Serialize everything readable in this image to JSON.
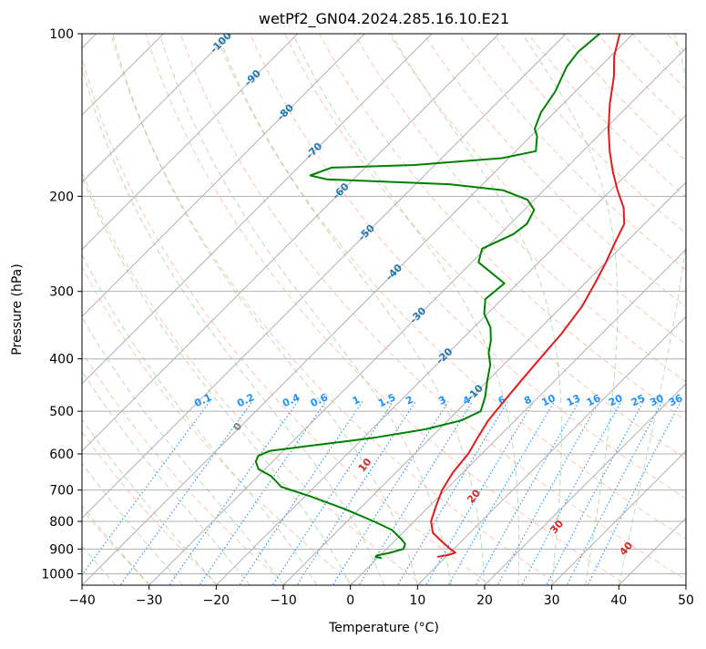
{
  "chart_data": {
    "type": "line",
    "subtype": "skew-t log-p diagram",
    "title": "wetPf2_GN04.2024.285.16.10.E21",
    "xlabel": "Temperature (°C)",
    "ylabel": "Pressure (hPa)",
    "xlim": [
      -40,
      50
    ],
    "ylim": [
      1050,
      100
    ],
    "y_scale": "log",
    "skew": "isotherms slope up-right at 45°",
    "x_ticks": [
      -40,
      -30,
      -20,
      -10,
      0,
      10,
      20,
      30,
      40,
      50
    ],
    "y_ticks": [
      1000,
      900,
      800,
      700,
      600,
      500,
      400,
      300,
      200,
      100
    ],
    "grid": true,
    "series": [
      {
        "label": "temperature",
        "color": "#e41a1c",
        "points": [
          [
            8.8,
            930
          ],
          [
            10.2,
            922
          ],
          [
            10.8,
            914
          ],
          [
            9.5,
            900
          ],
          [
            7.0,
            870
          ],
          [
            4.5,
            840
          ],
          [
            2.5,
            800
          ],
          [
            1.0,
            750
          ],
          [
            -0.5,
            700
          ],
          [
            -1.5,
            650
          ],
          [
            -2.0,
            600
          ],
          [
            -3.0,
            560
          ],
          [
            -4.0,
            520
          ],
          [
            -4.5,
            480
          ],
          [
            -5.0,
            440
          ],
          [
            -5.5,
            400
          ],
          [
            -6.0,
            360
          ],
          [
            -7.0,
            320
          ],
          [
            -8.5,
            290
          ],
          [
            -10.0,
            265
          ],
          [
            -11.5,
            245
          ],
          [
            -13.0,
            225
          ],
          [
            -15.5,
            210
          ],
          [
            -19.0,
            195
          ],
          [
            -22.5,
            180
          ],
          [
            -26.0,
            165
          ],
          [
            -29.5,
            150
          ],
          [
            -33.0,
            135
          ],
          [
            -36.5,
            120
          ],
          [
            -39.5,
            110
          ],
          [
            -42.0,
            100
          ]
        ]
      },
      {
        "label": "dewpoint",
        "color": "#008000",
        "points": [
          [
            0.5,
            935
          ],
          [
            -0.5,
            930
          ],
          [
            -0.5,
            925
          ],
          [
            1.0,
            915
          ],
          [
            2.5,
            900
          ],
          [
            2.0,
            880
          ],
          [
            0.5,
            860
          ],
          [
            -2.0,
            830
          ],
          [
            -6.0,
            800
          ],
          [
            -12.0,
            760
          ],
          [
            -19.0,
            720
          ],
          [
            -25.0,
            690
          ],
          [
            -28.0,
            660
          ],
          [
            -31.0,
            640
          ],
          [
            -32.5,
            620
          ],
          [
            -33.0,
            605
          ],
          [
            -32.0,
            592
          ],
          [
            -27.0,
            580
          ],
          [
            -18.5,
            560
          ],
          [
            -12.0,
            540
          ],
          [
            -8.0,
            520
          ],
          [
            -6.5,
            500
          ],
          [
            -8.0,
            470
          ],
          [
            -10.0,
            440
          ],
          [
            -12.0,
            410
          ],
          [
            -14.0,
            390
          ],
          [
            -15.5,
            370
          ],
          [
            -17.5,
            350
          ],
          [
            -20.5,
            330
          ],
          [
            -22.5,
            310
          ],
          [
            -22.0,
            290
          ],
          [
            -29.0,
            265
          ],
          [
            -30.5,
            250
          ],
          [
            -28.0,
            235
          ],
          [
            -27.5,
            225
          ],
          [
            -28.5,
            212
          ],
          [
            -31.0,
            203
          ],
          [
            -36.0,
            195
          ],
          [
            -45.0,
            190
          ],
          [
            -64.0,
            186
          ],
          [
            -67.0,
            183
          ],
          [
            -65.0,
            177
          ],
          [
            -53.0,
            175
          ],
          [
            -41.0,
            170
          ],
          [
            -37.0,
            165
          ],
          [
            -38.0,
            160
          ],
          [
            -39.0,
            155
          ],
          [
            -40.5,
            150
          ],
          [
            -42.0,
            140
          ],
          [
            -43.0,
            128
          ],
          [
            -45.0,
            115
          ],
          [
            -45.5,
            108
          ],
          [
            -45.0,
            100
          ]
        ]
      }
    ],
    "isotherm_labels": [
      "-100",
      "-90",
      "-80",
      "-70",
      "-60",
      "-50",
      "-40",
      "-30",
      "-20",
      "-10"
    ],
    "mixing_ratio_labels": [
      "0.1",
      "0.2",
      "0.4",
      "0.6",
      "1",
      "1.5",
      "2",
      "3",
      "4",
      "6",
      "8",
      "10",
      "13",
      "16",
      "20",
      "25",
      "30",
      "36"
    ],
    "moist_adiabat_labels": [
      "0",
      "10",
      "20",
      "30",
      "40"
    ],
    "annotation_colors": {
      "isotherm_labels": "#1f77b4",
      "mixing_ratio_labels": "#1e90ff",
      "moist_adiabat_labels": "#d62728",
      "moist_zero_label": "#808080",
      "dry_adiabats": "#ff7f50",
      "moist_adiabats": "#2ca02c",
      "mixing_ratio_lines": "#1e90ff",
      "grid": "#b0b0b0"
    }
  }
}
